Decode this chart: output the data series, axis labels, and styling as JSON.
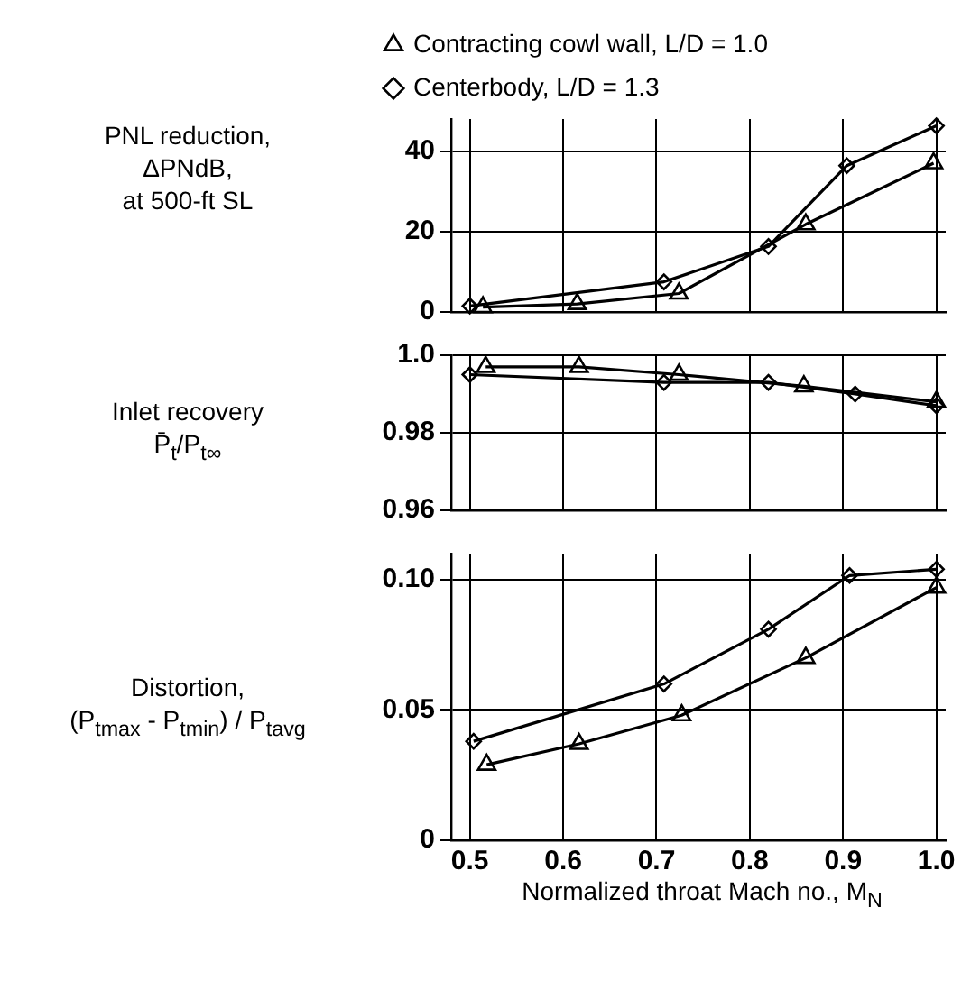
{
  "chart_data": [
    {
      "type": "line",
      "ylabel": "PNL reduction,\nΔPNdB,\nat 500-ft SL",
      "xlim": [
        0.48,
        1.01
      ],
      "xticks": [
        0.5,
        0.6,
        0.7,
        0.8,
        0.9,
        1.0
      ],
      "ylim": [
        0,
        48
      ],
      "yticks": [
        0,
        20,
        40
      ],
      "grid": true,
      "legend": "top",
      "tick_labels": "y",
      "series": [
        {
          "name": "Contracting cowl wall, L/D = 1.0",
          "color": "#000000",
          "marker": "triangle",
          "x": [
            0.514,
            0.615,
            0.724,
            0.86,
            0.997
          ],
          "values": [
            1.2,
            2,
            4.6,
            21.8,
            37.0
          ]
        },
        {
          "name": "Centerbody, L/D = 1.3",
          "color": "#000000",
          "marker": "diamond",
          "x": [
            0.5,
            0.708,
            0.82,
            0.904,
            1.0
          ],
          "values": [
            1.5,
            7.5,
            16.3,
            36.4,
            46.3
          ]
        }
      ]
    },
    {
      "type": "line",
      "ylabel": "Inlet recovery\nP̄$_{t}$/P$_{t∞}$",
      "xlim": [
        0.48,
        1.01
      ],
      "xticks": [
        0.5,
        0.6,
        0.7,
        0.8,
        0.9,
        1.0
      ],
      "ylim": [
        0.96,
        1.0
      ],
      "yticks": [
        0.96,
        0.98,
        {
          "value": 1.0,
          "label": "1.0"
        }
      ],
      "grid": true,
      "tick_labels": "y",
      "series": [
        {
          "color": "#000000",
          "marker": "triangle",
          "x": [
            0.517,
            0.617,
            0.724,
            0.858,
            1.0
          ],
          "values": [
            0.997,
            0.997,
            0.995,
            0.992,
            0.988
          ]
        },
        {
          "color": "#000000",
          "marker": "diamond",
          "x": [
            0.5,
            0.708,
            0.82,
            0.913,
            1.0
          ],
          "values": [
            0.995,
            0.993,
            0.993,
            0.99,
            0.987
          ]
        }
      ]
    },
    {
      "type": "line",
      "ylabel": "Distortion,\n(P$_{tmax}$ - P$_{tmin}$) / P$_{tavg}$",
      "xlabel": "Normalized throat Mach no., M$_{N}$",
      "xlim": [
        0.48,
        1.01
      ],
      "xticks": [
        0.5,
        0.6,
        0.7,
        0.8,
        0.9,
        {
          "value": 1.0,
          "label": "1.0"
        }
      ],
      "ylim": [
        0,
        0.11
      ],
      "yticks": [
        0,
        0.05,
        {
          "value": 0.1,
          "label": "0.10"
        }
      ],
      "grid": true,
      "series": [
        {
          "color": "#000000",
          "marker": "triangle",
          "x": [
            0.518,
            0.617,
            0.727,
            0.86,
            1.0
          ],
          "values": [
            0.029,
            0.037,
            0.048,
            0.07,
            0.097
          ]
        },
        {
          "color": "#000000",
          "marker": "diamond",
          "x": [
            0.504,
            0.708,
            0.82,
            0.907,
            1.0
          ],
          "values": [
            0.038,
            0.06,
            0.081,
            0.1016,
            0.104
          ]
        }
      ]
    }
  ]
}
